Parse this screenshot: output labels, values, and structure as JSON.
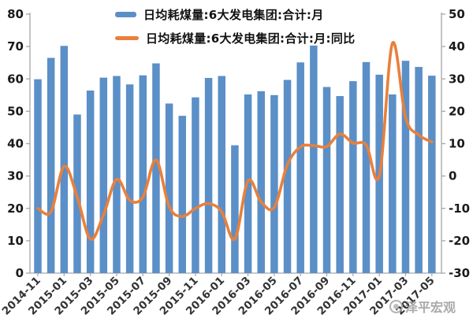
{
  "page": {
    "background": "#ffffff"
  },
  "legend": {
    "items": [
      {
        "label": "日均耗煤量:6大发电集团:合计:月",
        "marker": "bar",
        "color": "#5B8FC7"
      },
      {
        "label": "日均耗煤量:6大发电集团:合计:月:同比",
        "marker": "line",
        "color": "#E8803C"
      }
    ]
  },
  "watermark": {
    "text": "泽平宏观",
    "logo": "circle-logo"
  },
  "chart_data": {
    "type": "combo-bar-line",
    "title": "",
    "categories": [
      "2014-11",
      "2014-12",
      "2015-01",
      "2015-02",
      "2015-03",
      "2015-04",
      "2015-05",
      "2015-06",
      "2015-07",
      "2015-08",
      "2015-09",
      "2015-10",
      "2015-11",
      "2015-12",
      "2016-01",
      "2016-02",
      "2016-03",
      "2016-04",
      "2016-05",
      "2016-06",
      "2016-07",
      "2016-08",
      "2016-09",
      "2016-10",
      "2016-11",
      "2016-12",
      "2017-01",
      "2017-02",
      "2017-03",
      "2017-04",
      "2017-05"
    ],
    "x_tick_labels": [
      "2014-11",
      "2015-01",
      "2015-03",
      "2015-05",
      "2015-07",
      "2015-09",
      "2015-11",
      "2016-01",
      "2016-03",
      "2016-05",
      "2016-07",
      "2016-09",
      "2016-11",
      "2017-01",
      "2017-03",
      "2017-05"
    ],
    "series": [
      {
        "name": "日均耗煤量:6大发电集团:合计:月",
        "type": "bar",
        "axis": "left",
        "color": "#5B8FC7",
        "values": [
          59.9,
          66.5,
          70.2,
          49.0,
          56.4,
          60.4,
          60.9,
          58.3,
          61.1,
          64.8,
          52.4,
          48.6,
          54.3,
          60.3,
          60.9,
          39.5,
          55.2,
          56.2,
          55.0,
          59.7,
          65.1,
          70.3,
          57.5,
          54.7,
          59.3,
          65.2,
          61.3,
          55.2,
          65.6,
          63.7,
          61.0
        ]
      },
      {
        "name": "日均耗煤量:6大发电集团:合计:月:同比",
        "type": "line",
        "axis": "right",
        "color": "#E8803C",
        "values": [
          -10,
          -11,
          3,
          -6.5,
          -19.5,
          -12,
          -1,
          -7.5,
          -6.5,
          5,
          -9.5,
          -12.5,
          -10,
          -8.5,
          -11,
          -19.5,
          -1.5,
          -8,
          -9.7,
          3.5,
          9,
          9.4,
          9.1,
          13,
          10.2,
          9.6,
          0,
          41,
          18,
          12.7,
          10.5
        ]
      }
    ],
    "left_axis": {
      "min": 0,
      "max": 80,
      "step": 10,
      "ticks": [
        0,
        10,
        20,
        30,
        40,
        50,
        60,
        70,
        80
      ]
    },
    "right_axis": {
      "min": -30,
      "max": 50,
      "step": 10,
      "ticks": [
        -30,
        -20,
        -10,
        0,
        10,
        20,
        30,
        40,
        50
      ]
    },
    "grid": false,
    "legend_position": "top-center",
    "axis_color": "#A6A6A6",
    "tick_label_color": "#1a1a1a",
    "x_label_color": "#333333"
  }
}
